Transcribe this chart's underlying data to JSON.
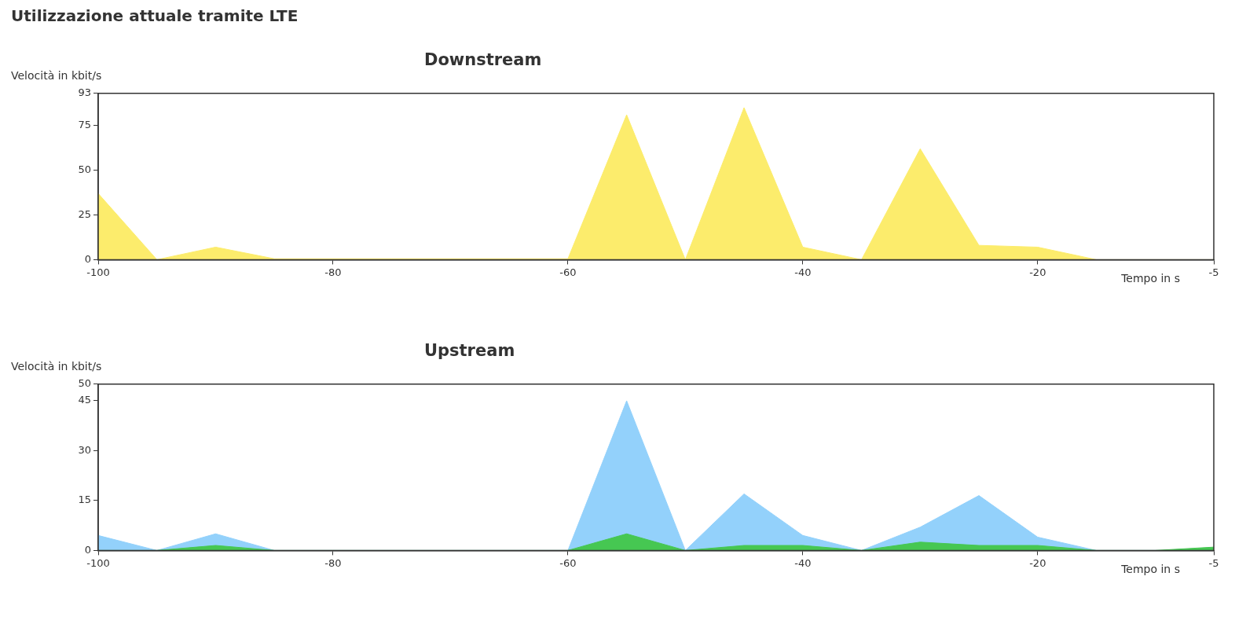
{
  "chart_data": [
    {
      "type": "area",
      "title": "Downstream",
      "annotations": [
        "Utilizzazione attuale tramite LTE"
      ],
      "ylabel": "Velocità in kbit/s",
      "xlabel": "Tempo in s",
      "x": [
        -100,
        -95,
        -90,
        -85,
        -80,
        -75,
        -70,
        -65,
        -60,
        -55,
        -50,
        -45,
        -40,
        -35,
        -30,
        -25,
        -20,
        -15,
        -10,
        -5
      ],
      "series": [
        {
          "color": "#fcec6c",
          "values": [
            37,
            0,
            7,
            0.5,
            0.5,
            0.5,
            0.5,
            0.5,
            0.5,
            81,
            0,
            85,
            7,
            0,
            62,
            8,
            7,
            0,
            0,
            0
          ]
        }
      ],
      "xlim": [
        -100,
        -5
      ],
      "xticks": [
        -100,
        -80,
        -60,
        -40,
        -20,
        -5
      ],
      "ylim": [
        0,
        93
      ],
      "yticks": [
        0,
        25,
        50,
        75,
        93
      ],
      "grid": false,
      "legend": false
    },
    {
      "type": "area",
      "title": "Upstream",
      "ylabel": "Velocità in kbit/s",
      "xlabel": "Tempo in s",
      "x": [
        -100,
        -95,
        -90,
        -85,
        -80,
        -75,
        -70,
        -65,
        -60,
        -55,
        -50,
        -45,
        -40,
        -35,
        -30,
        -25,
        -20,
        -15,
        -10,
        -5
      ],
      "series": [
        {
          "color": "#93d1fb",
          "values": [
            4.5,
            0,
            5,
            0,
            0,
            0,
            0,
            0,
            0,
            45,
            0,
            17,
            4.5,
            0,
            7,
            16.5,
            4,
            0,
            0,
            0
          ]
        },
        {
          "color": "#46c752",
          "values": [
            0,
            0,
            1.5,
            0,
            0,
            0,
            0,
            0,
            0,
            5,
            0,
            1.5,
            1.5,
            0,
            2.5,
            1.5,
            1.5,
            0,
            0,
            1
          ]
        }
      ],
      "xlim": [
        -100,
        -5
      ],
      "xticks": [
        -100,
        -80,
        -60,
        -40,
        -20,
        -5
      ],
      "ylim": [
        0,
        50
      ],
      "yticks": [
        0,
        15,
        30,
        45,
        50
      ],
      "grid": false,
      "legend": false
    }
  ]
}
